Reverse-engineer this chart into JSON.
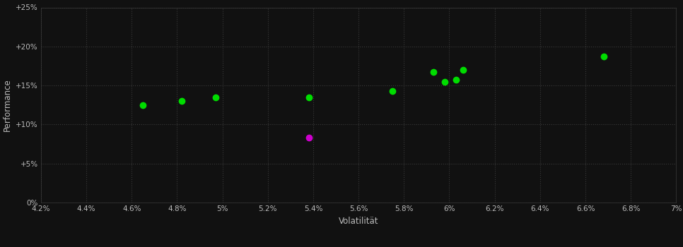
{
  "green_points": [
    [
      4.65,
      0.125
    ],
    [
      4.82,
      0.13
    ],
    [
      4.97,
      0.135
    ],
    [
      5.38,
      0.135
    ],
    [
      5.75,
      0.143
    ],
    [
      5.93,
      0.167
    ],
    [
      5.98,
      0.155
    ],
    [
      6.03,
      0.157
    ],
    [
      6.06,
      0.17
    ],
    [
      6.68,
      0.187
    ]
  ],
  "magenta_points": [
    [
      5.38,
      0.083
    ]
  ],
  "green_color": "#00dd00",
  "magenta_color": "#cc00cc",
  "bg_color": "#111111",
  "plot_bg_color": "#111111",
  "grid_color": "#3a3a3a",
  "text_color": "#bbbbbb",
  "xlabel": "Volatilität",
  "ylabel": "Performance",
  "xmin": 0.042,
  "xmax": 0.07,
  "ymin": 0.0,
  "ymax": 0.25,
  "xticks": [
    0.042,
    0.044,
    0.046,
    0.048,
    0.05,
    0.052,
    0.054,
    0.056,
    0.058,
    0.06,
    0.062,
    0.064,
    0.066,
    0.068,
    0.07
  ],
  "yticks": [
    0.0,
    0.05,
    0.1,
    0.15,
    0.2,
    0.25
  ],
  "ytick_labels": [
    "0%",
    "+5%",
    "+10%",
    "+15%",
    "+20%",
    "+25%"
  ],
  "xtick_labels": [
    "4.2%",
    "4.4%",
    "4.6%",
    "4.8%",
    "5%",
    "5.2%",
    "5.4%",
    "5.6%",
    "5.8%",
    "6%",
    "6.2%",
    "6.4%",
    "6.6%",
    "6.8%",
    "7%"
  ],
  "marker_size": 6
}
